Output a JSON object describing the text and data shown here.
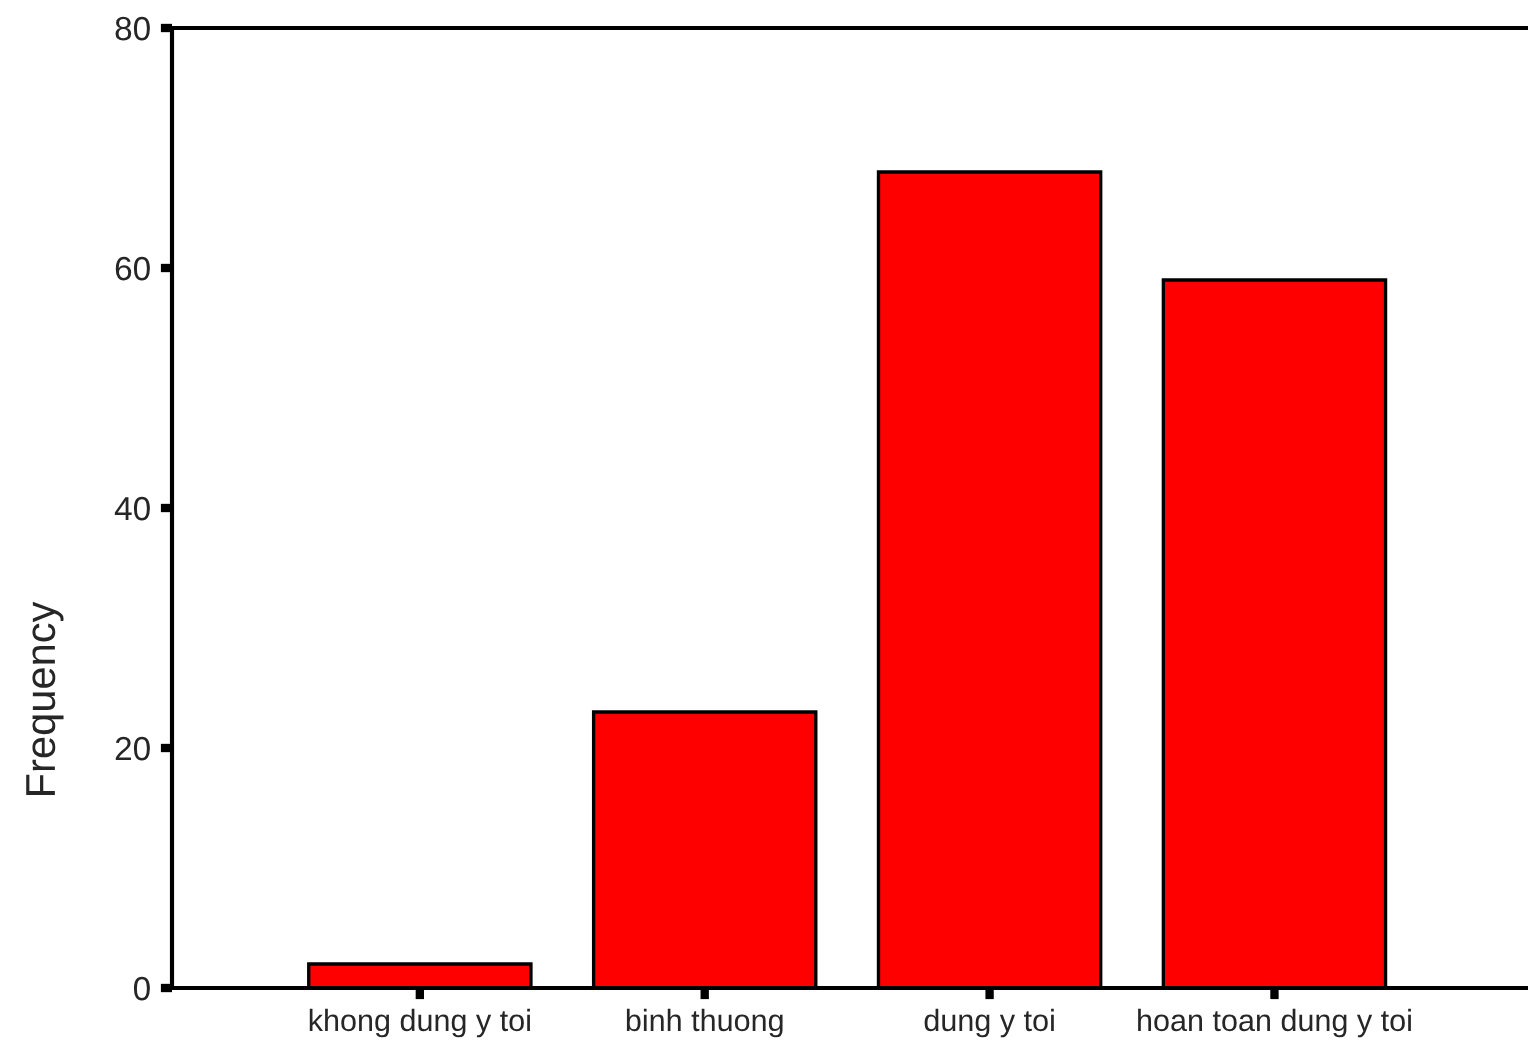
{
  "chart_data": {
    "type": "bar",
    "ylabel": "Frequency",
    "categories": [
      "khong dung y toi",
      "binh thuong",
      "dung y toi",
      "hoan toan dung y toi"
    ],
    "values": [
      2,
      23,
      68,
      59
    ],
    "color": "#ff0000",
    "ylim": [
      0,
      80
    ],
    "yticks": [
      0,
      20,
      40,
      60,
      80
    ],
    "grid": false
  }
}
